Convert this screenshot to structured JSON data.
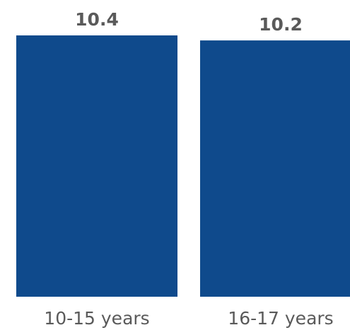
{
  "chart_data": {
    "type": "bar",
    "categories": [
      "10-15 years",
      "16-17 years"
    ],
    "values": [
      10.4,
      10.2
    ],
    "data_labels": [
      "10.4",
      "10.2"
    ],
    "colors": {
      "bar": "#0f4a8c",
      "label_text": "#5a5a5a"
    },
    "grid": false,
    "legend": "none"
  }
}
